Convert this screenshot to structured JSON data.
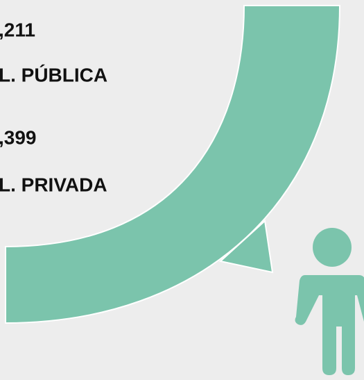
{
  "items": [
    {
      "value": ",211",
      "label": "L. PÚBLICA"
    },
    {
      "value": ",399",
      "label": "L. PRIVADA"
    }
  ]
}
